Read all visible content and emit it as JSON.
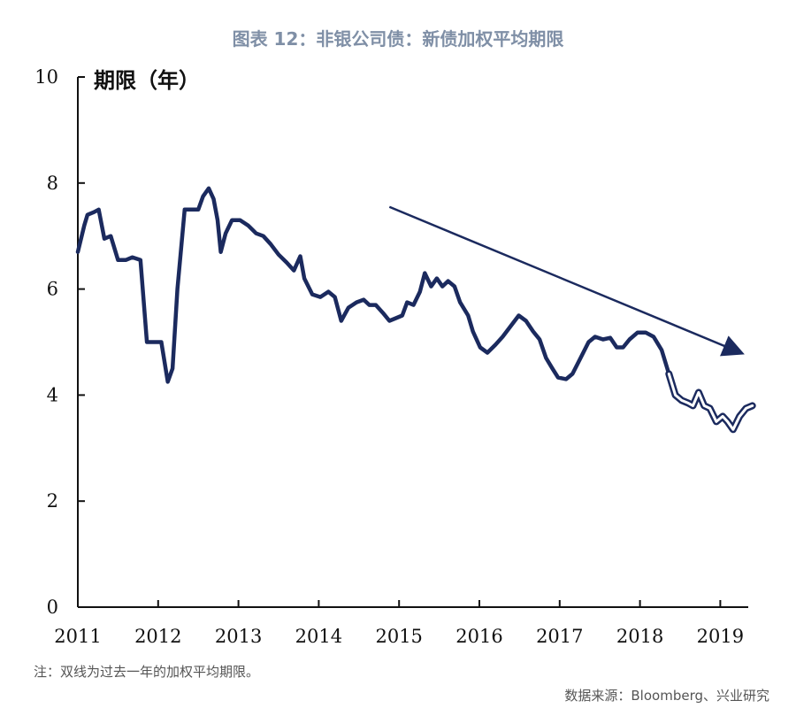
{
  "chart_data": {
    "type": "line",
    "title": "图表 12：非银公司债：新债加权平均期限",
    "ylabel": "期限（年）",
    "xlabel": "",
    "ylim": [
      0,
      10
    ],
    "xlim": [
      2011,
      2019.45
    ],
    "y_ticks": [
      "0",
      "2",
      "4",
      "6",
      "8",
      "10"
    ],
    "x_ticks": [
      "2011",
      "2012",
      "2013",
      "2014",
      "2015",
      "2016",
      "2017",
      "2018",
      "2019"
    ],
    "grid": false,
    "series": [
      {
        "style": "single-line",
        "color": "#1b2a5e",
        "points": [
          [
            2011.0,
            6.7
          ],
          [
            2011.08,
            7.2
          ],
          [
            2011.12,
            7.4
          ],
          [
            2011.2,
            7.45
          ],
          [
            2011.26,
            7.5
          ],
          [
            2011.33,
            6.95
          ],
          [
            2011.41,
            7.0
          ],
          [
            2011.5,
            6.55
          ],
          [
            2011.6,
            6.55
          ],
          [
            2011.68,
            6.6
          ],
          [
            2011.78,
            6.55
          ],
          [
            2011.86,
            5.0
          ],
          [
            2011.94,
            5.0
          ],
          [
            2012.04,
            5.0
          ],
          [
            2012.12,
            4.25
          ],
          [
            2012.18,
            4.5
          ],
          [
            2012.24,
            6.0
          ],
          [
            2012.33,
            7.5
          ],
          [
            2012.41,
            7.5
          ],
          [
            2012.5,
            7.5
          ],
          [
            2012.56,
            7.75
          ],
          [
            2012.63,
            7.9
          ],
          [
            2012.69,
            7.7
          ],
          [
            2012.74,
            7.3
          ],
          [
            2012.78,
            6.7
          ],
          [
            2012.84,
            7.05
          ],
          [
            2012.92,
            7.3
          ],
          [
            2013.02,
            7.3
          ],
          [
            2013.12,
            7.2
          ],
          [
            2013.22,
            7.05
          ],
          [
            2013.31,
            7.0
          ],
          [
            2013.4,
            6.85
          ],
          [
            2013.5,
            6.65
          ],
          [
            2013.6,
            6.5
          ],
          [
            2013.69,
            6.35
          ],
          [
            2013.77,
            6.62
          ],
          [
            2013.82,
            6.2
          ],
          [
            2013.92,
            5.9
          ],
          [
            2014.02,
            5.85
          ],
          [
            2014.12,
            5.95
          ],
          [
            2014.2,
            5.85
          ],
          [
            2014.28,
            5.4
          ],
          [
            2014.37,
            5.65
          ],
          [
            2014.47,
            5.75
          ],
          [
            2014.56,
            5.8
          ],
          [
            2014.63,
            5.7
          ],
          [
            2014.71,
            5.7
          ],
          [
            2014.8,
            5.55
          ],
          [
            2014.88,
            5.4
          ],
          [
            2014.96,
            5.45
          ],
          [
            2015.04,
            5.5
          ],
          [
            2015.1,
            5.75
          ],
          [
            2015.18,
            5.7
          ],
          [
            2015.26,
            5.95
          ],
          [
            2015.32,
            6.3
          ],
          [
            2015.4,
            6.05
          ],
          [
            2015.47,
            6.2
          ],
          [
            2015.54,
            6.05
          ],
          [
            2015.61,
            6.15
          ],
          [
            2015.69,
            6.05
          ],
          [
            2015.76,
            5.75
          ],
          [
            2015.86,
            5.5
          ],
          [
            2015.92,
            5.2
          ],
          [
            2016.01,
            4.9
          ],
          [
            2016.1,
            4.8
          ],
          [
            2016.2,
            4.95
          ],
          [
            2016.29,
            5.1
          ],
          [
            2016.39,
            5.3
          ],
          [
            2016.49,
            5.5
          ],
          [
            2016.58,
            5.4
          ],
          [
            2016.67,
            5.2
          ],
          [
            2016.75,
            5.05
          ],
          [
            2016.83,
            4.7
          ],
          [
            2016.91,
            4.5
          ],
          [
            2016.98,
            4.33
          ],
          [
            2017.08,
            4.3
          ],
          [
            2017.16,
            4.4
          ],
          [
            2017.26,
            4.7
          ],
          [
            2017.36,
            5.0
          ],
          [
            2017.44,
            5.1
          ],
          [
            2017.54,
            5.05
          ],
          [
            2017.63,
            5.08
          ],
          [
            2017.71,
            4.9
          ],
          [
            2017.79,
            4.9
          ],
          [
            2017.87,
            5.05
          ],
          [
            2017.97,
            5.18
          ],
          [
            2018.07,
            5.18
          ],
          [
            2018.17,
            5.1
          ],
          [
            2018.27,
            4.85
          ],
          [
            2018.36,
            4.4
          ]
        ]
      },
      {
        "style": "double-line",
        "note": "过去一年的加权平均期限",
        "color": "#1b2a5e",
        "points": [
          [
            2018.36,
            4.4
          ],
          [
            2018.44,
            4.0
          ],
          [
            2018.52,
            3.9
          ],
          [
            2018.6,
            3.85
          ],
          [
            2018.66,
            3.8
          ],
          [
            2018.73,
            4.05
          ],
          [
            2018.8,
            3.8
          ],
          [
            2018.87,
            3.75
          ],
          [
            2018.95,
            3.5
          ],
          [
            2019.03,
            3.6
          ],
          [
            2019.09,
            3.5
          ],
          [
            2019.16,
            3.35
          ],
          [
            2019.24,
            3.6
          ],
          [
            2019.32,
            3.75
          ],
          [
            2019.4,
            3.8
          ]
        ]
      }
    ],
    "annotations": [
      {
        "type": "arrow",
        "from": [
          2014.88,
          7.55
        ],
        "to": [
          2019.45,
          4.7
        ],
        "color": "#1b2a5e"
      }
    ]
  },
  "footer": {
    "note": "注：双线为过去一年的加权平均期限。",
    "source": "数据来源：Bloomberg、兴业研究"
  }
}
